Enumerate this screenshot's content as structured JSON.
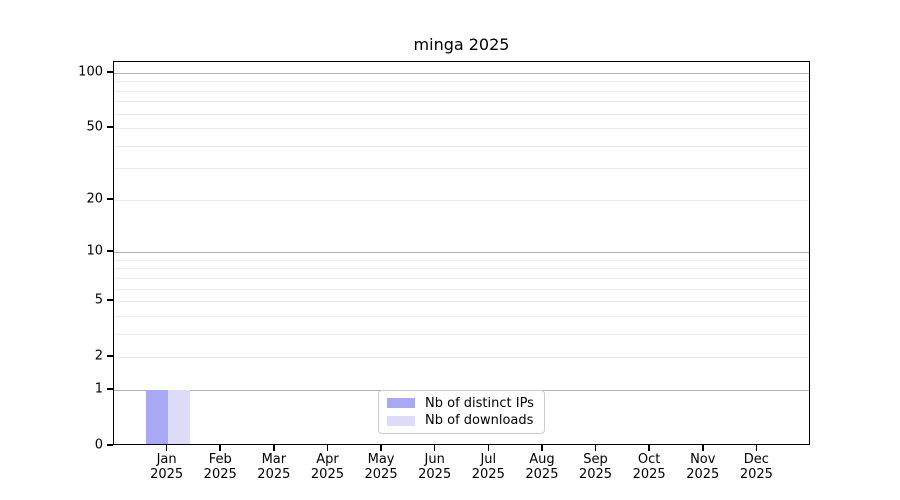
{
  "title": "minga 2025",
  "chart_data": {
    "type": "bar",
    "title": "minga 2025",
    "x_months": [
      "Jan",
      "Feb",
      "Mar",
      "Apr",
      "May",
      "Jun",
      "Jul",
      "Aug",
      "Sep",
      "Oct",
      "Nov",
      "Dec"
    ],
    "x_year": "2025",
    "series": [
      {
        "name": "Nb of distinct IPs",
        "color": "#a8a8f5",
        "values": [
          1,
          0,
          0,
          0,
          0,
          0,
          0,
          0,
          0,
          0,
          0,
          0
        ]
      },
      {
        "name": "Nb of downloads",
        "color": "#dcdcf9",
        "values": [
          1,
          0,
          0,
          0,
          0,
          0,
          0,
          0,
          0,
          0,
          0,
          0
        ]
      }
    ],
    "y_axis": {
      "scale": "log10(1+value)",
      "tick_labels": [
        "100",
        "50",
        "20",
        "10",
        "5",
        "2",
        "1",
        "0"
      ],
      "tick_values": [
        100,
        50,
        20,
        10,
        5,
        2,
        1,
        0
      ],
      "major_grid_values": [
        100,
        10,
        1
      ],
      "minor_grid_values": [
        90,
        80,
        70,
        60,
        50,
        40,
        30,
        20,
        9,
        8,
        7,
        6,
        5,
        4,
        3,
        2
      ],
      "range": [
        0,
        115
      ]
    },
    "legend": {
      "position": "bottom-center",
      "entries": [
        "Nb of distinct IPs",
        "Nb of downloads"
      ]
    },
    "grid": true
  },
  "colors": {
    "background": "#ffffff",
    "spine": "#000000",
    "text": "#000000",
    "major_grid": "#b0b0b0",
    "minor_grid": "#ebebeb",
    "legend_border": "#cccccc",
    "bar_distinct_ips": "#a8a8f5",
    "bar_downloads": "#dcdcf9"
  }
}
